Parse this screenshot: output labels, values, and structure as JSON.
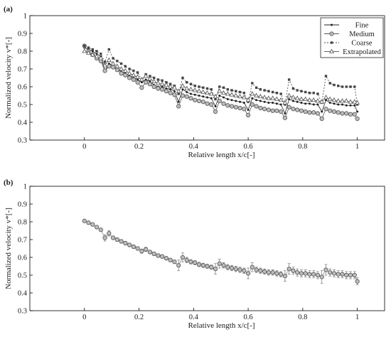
{
  "figure": {
    "panel_a_label": "(a)",
    "panel_b_label": "(b)"
  },
  "chart_data": [
    {
      "type": "line",
      "panel": "(a)",
      "xlabel": "Relative length x/c[-]",
      "ylabel": "Normalized velocity v*[-]",
      "xlim": [
        -0.2,
        1.1
      ],
      "ylim": [
        0.3,
        1.0
      ],
      "xticks": [
        "0",
        "0.2",
        "0.4",
        "0.6",
        "0.8",
        "1"
      ],
      "yticks": [
        "0.3",
        "0.4",
        "0.5",
        "0.6",
        "0.7",
        "0.8",
        "0.9",
        "1"
      ],
      "legend_position": "top-right",
      "grid": false,
      "series": [
        {
          "name": "Fine",
          "marker": "dot",
          "x": [
            0.0,
            0.015,
            0.03,
            0.045,
            0.06,
            0.075,
            0.09,
            0.105,
            0.12,
            0.135,
            0.15,
            0.165,
            0.18,
            0.195,
            0.21,
            0.225,
            0.24,
            0.255,
            0.27,
            0.285,
            0.3,
            0.315,
            0.33,
            0.345,
            0.36,
            0.375,
            0.39,
            0.405,
            0.42,
            0.435,
            0.45,
            0.465,
            0.48,
            0.495,
            0.51,
            0.525,
            0.54,
            0.555,
            0.57,
            0.585,
            0.6,
            0.615,
            0.63,
            0.645,
            0.66,
            0.675,
            0.69,
            0.705,
            0.72,
            0.735,
            0.75,
            0.765,
            0.78,
            0.795,
            0.81,
            0.825,
            0.84,
            0.855,
            0.87,
            0.885,
            0.9,
            0.915,
            0.93,
            0.945,
            0.96,
            0.975,
            0.99,
            1.0
          ],
          "y": [
            0.82,
            0.81,
            0.8,
            0.785,
            0.77,
            0.69,
            0.73,
            0.72,
            0.7,
            0.685,
            0.675,
            0.66,
            0.65,
            0.64,
            0.625,
            0.64,
            0.63,
            0.61,
            0.6,
            0.6,
            0.59,
            0.585,
            0.575,
            0.515,
            0.585,
            0.57,
            0.56,
            0.555,
            0.55,
            0.545,
            0.54,
            0.535,
            0.49,
            0.55,
            0.54,
            0.53,
            0.525,
            0.52,
            0.515,
            0.51,
            0.47,
            0.535,
            0.525,
            0.52,
            0.515,
            0.51,
            0.51,
            0.505,
            0.5,
            0.45,
            0.53,
            0.52,
            0.515,
            0.51,
            0.505,
            0.505,
            0.5,
            0.5,
            0.46,
            0.525,
            0.51,
            0.505,
            0.5,
            0.5,
            0.495,
            0.495,
            0.495,
            0.46
          ]
        },
        {
          "name": "Medium",
          "marker": "circle",
          "x": [
            0.0,
            0.015,
            0.03,
            0.045,
            0.06,
            0.075,
            0.09,
            0.105,
            0.12,
            0.135,
            0.15,
            0.165,
            0.18,
            0.195,
            0.21,
            0.225,
            0.24,
            0.255,
            0.27,
            0.285,
            0.3,
            0.315,
            0.33,
            0.345,
            0.36,
            0.375,
            0.39,
            0.405,
            0.42,
            0.435,
            0.45,
            0.465,
            0.48,
            0.495,
            0.51,
            0.525,
            0.54,
            0.555,
            0.57,
            0.585,
            0.6,
            0.615,
            0.63,
            0.645,
            0.66,
            0.675,
            0.69,
            0.705,
            0.72,
            0.735,
            0.75,
            0.765,
            0.78,
            0.795,
            0.81,
            0.825,
            0.84,
            0.855,
            0.87,
            0.885,
            0.9,
            0.915,
            0.93,
            0.945,
            0.96,
            0.975,
            0.99,
            1.0
          ],
          "y": [
            0.83,
            0.8,
            0.78,
            0.76,
            0.745,
            0.69,
            0.715,
            0.71,
            0.695,
            0.675,
            0.665,
            0.65,
            0.64,
            0.625,
            0.595,
            0.625,
            0.615,
            0.6,
            0.59,
            0.585,
            0.575,
            0.565,
            0.555,
            0.49,
            0.55,
            0.545,
            0.535,
            0.525,
            0.52,
            0.515,
            0.505,
            0.5,
            0.46,
            0.52,
            0.505,
            0.495,
            0.49,
            0.485,
            0.48,
            0.475,
            0.44,
            0.5,
            0.49,
            0.48,
            0.475,
            0.47,
            0.465,
            0.465,
            0.46,
            0.425,
            0.485,
            0.475,
            0.47,
            0.465,
            0.46,
            0.455,
            0.455,
            0.45,
            0.42,
            0.475,
            0.465,
            0.46,
            0.455,
            0.45,
            0.45,
            0.445,
            0.445,
            0.42
          ]
        },
        {
          "name": "Coarse",
          "marker": "square",
          "x": [
            0.0,
            0.015,
            0.03,
            0.045,
            0.06,
            0.075,
            0.09,
            0.105,
            0.12,
            0.135,
            0.15,
            0.165,
            0.18,
            0.195,
            0.21,
            0.225,
            0.24,
            0.255,
            0.27,
            0.285,
            0.3,
            0.315,
            0.33,
            0.345,
            0.36,
            0.375,
            0.39,
            0.405,
            0.42,
            0.435,
            0.45,
            0.465,
            0.48,
            0.495,
            0.51,
            0.525,
            0.54,
            0.555,
            0.57,
            0.585,
            0.6,
            0.615,
            0.63,
            0.645,
            0.66,
            0.675,
            0.69,
            0.705,
            0.72,
            0.735,
            0.75,
            0.765,
            0.78,
            0.795,
            0.81,
            0.825,
            0.84,
            0.855,
            0.87,
            0.885,
            0.9,
            0.915,
            0.93,
            0.945,
            0.96,
            0.975,
            0.99,
            1.0
          ],
          "y": [
            0.83,
            0.82,
            0.81,
            0.8,
            0.785,
            0.74,
            0.81,
            0.76,
            0.745,
            0.73,
            0.715,
            0.7,
            0.69,
            0.68,
            0.64,
            0.67,
            0.66,
            0.65,
            0.64,
            0.635,
            0.625,
            0.615,
            0.605,
            0.56,
            0.65,
            0.625,
            0.615,
            0.605,
            0.6,
            0.595,
            0.59,
            0.585,
            0.53,
            0.6,
            0.595,
            0.585,
            0.58,
            0.575,
            0.57,
            0.565,
            0.515,
            0.62,
            0.595,
            0.585,
            0.58,
            0.575,
            0.57,
            0.565,
            0.56,
            0.5,
            0.64,
            0.59,
            0.58,
            0.575,
            0.57,
            0.565,
            0.565,
            0.56,
            0.51,
            0.66,
            0.62,
            0.61,
            0.605,
            0.6,
            0.6,
            0.6,
            0.6,
            0.5
          ]
        },
        {
          "name": "Extrapolated",
          "marker": "triangle",
          "x": [
            0.0,
            0.015,
            0.03,
            0.045,
            0.06,
            0.075,
            0.09,
            0.105,
            0.12,
            0.135,
            0.15,
            0.165,
            0.18,
            0.195,
            0.21,
            0.225,
            0.24,
            0.255,
            0.27,
            0.285,
            0.3,
            0.315,
            0.33,
            0.345,
            0.36,
            0.375,
            0.39,
            0.405,
            0.42,
            0.435,
            0.45,
            0.465,
            0.48,
            0.495,
            0.51,
            0.525,
            0.54,
            0.555,
            0.57,
            0.585,
            0.6,
            0.615,
            0.63,
            0.645,
            0.66,
            0.675,
            0.69,
            0.705,
            0.72,
            0.735,
            0.75,
            0.765,
            0.78,
            0.795,
            0.81,
            0.825,
            0.84,
            0.855,
            0.87,
            0.885,
            0.9,
            0.915,
            0.93,
            0.945,
            0.96,
            0.975,
            0.99,
            1.0
          ],
          "y": [
            0.8,
            0.79,
            0.78,
            0.77,
            0.76,
            0.72,
            0.75,
            0.73,
            0.715,
            0.7,
            0.69,
            0.675,
            0.665,
            0.655,
            0.64,
            0.66,
            0.645,
            0.63,
            0.62,
            0.615,
            0.61,
            0.6,
            0.595,
            0.575,
            0.605,
            0.59,
            0.585,
            0.58,
            0.575,
            0.57,
            0.565,
            0.56,
            0.545,
            0.575,
            0.565,
            0.56,
            0.555,
            0.55,
            0.545,
            0.54,
            0.525,
            0.56,
            0.55,
            0.545,
            0.54,
            0.535,
            0.535,
            0.53,
            0.525,
            0.51,
            0.55,
            0.54,
            0.535,
            0.53,
            0.53,
            0.525,
            0.525,
            0.52,
            0.515,
            0.54,
            0.53,
            0.525,
            0.52,
            0.52,
            0.52,
            0.515,
            0.515,
            0.51
          ]
        }
      ]
    },
    {
      "type": "scatter",
      "panel": "(b)",
      "xlabel": "Relative length x/c[-]",
      "ylabel": "Normalized velocity v*[-]",
      "xlim": [
        -0.2,
        1.1
      ],
      "ylim": [
        0.3,
        1.0
      ],
      "xticks": [
        "0",
        "0.2",
        "0.4",
        "0.6",
        "0.8",
        "1"
      ],
      "yticks": [
        "0.3",
        "0.4",
        "0.5",
        "0.6",
        "0.7",
        "0.8",
        "0.9",
        "1"
      ],
      "grid": false,
      "series": [
        {
          "marker": "circle",
          "x": [
            0.0,
            0.015,
            0.03,
            0.045,
            0.06,
            0.075,
            0.09,
            0.105,
            0.12,
            0.135,
            0.15,
            0.165,
            0.18,
            0.195,
            0.21,
            0.225,
            0.24,
            0.255,
            0.27,
            0.285,
            0.3,
            0.315,
            0.33,
            0.345,
            0.36,
            0.375,
            0.39,
            0.405,
            0.42,
            0.435,
            0.45,
            0.465,
            0.48,
            0.495,
            0.51,
            0.525,
            0.54,
            0.555,
            0.57,
            0.585,
            0.6,
            0.615,
            0.63,
            0.645,
            0.66,
            0.675,
            0.69,
            0.705,
            0.72,
            0.735,
            0.75,
            0.765,
            0.78,
            0.795,
            0.81,
            0.825,
            0.84,
            0.855,
            0.87,
            0.885,
            0.9,
            0.915,
            0.93,
            0.945,
            0.96,
            0.975,
            0.99,
            1.0
          ],
          "y": [
            0.805,
            0.795,
            0.785,
            0.77,
            0.755,
            0.71,
            0.735,
            0.71,
            0.7,
            0.69,
            0.68,
            0.67,
            0.66,
            0.65,
            0.635,
            0.645,
            0.63,
            0.62,
            0.61,
            0.605,
            0.595,
            0.585,
            0.575,
            0.555,
            0.6,
            0.585,
            0.575,
            0.57,
            0.56,
            0.555,
            0.55,
            0.545,
            0.535,
            0.565,
            0.555,
            0.545,
            0.54,
            0.535,
            0.53,
            0.525,
            0.51,
            0.545,
            0.53,
            0.525,
            0.52,
            0.515,
            0.515,
            0.51,
            0.505,
            0.495,
            0.535,
            0.525,
            0.515,
            0.51,
            0.51,
            0.505,
            0.505,
            0.5,
            0.49,
            0.53,
            0.515,
            0.51,
            0.505,
            0.505,
            0.5,
            0.5,
            0.5,
            0.465
          ],
          "error": [
            0.008,
            0.008,
            0.008,
            0.008,
            0.008,
            0.018,
            0.015,
            0.01,
            0.01,
            0.01,
            0.01,
            0.01,
            0.01,
            0.01,
            0.012,
            0.012,
            0.01,
            0.01,
            0.01,
            0.01,
            0.01,
            0.01,
            0.01,
            0.03,
            0.025,
            0.015,
            0.012,
            0.012,
            0.012,
            0.012,
            0.012,
            0.012,
            0.03,
            0.025,
            0.015,
            0.015,
            0.015,
            0.015,
            0.015,
            0.015,
            0.03,
            0.025,
            0.015,
            0.015,
            0.015,
            0.015,
            0.015,
            0.015,
            0.015,
            0.03,
            0.03,
            0.02,
            0.02,
            0.02,
            0.02,
            0.02,
            0.02,
            0.02,
            0.035,
            0.03,
            0.02,
            0.02,
            0.02,
            0.02,
            0.02,
            0.02,
            0.02,
            0.02
          ]
        }
      ]
    }
  ]
}
